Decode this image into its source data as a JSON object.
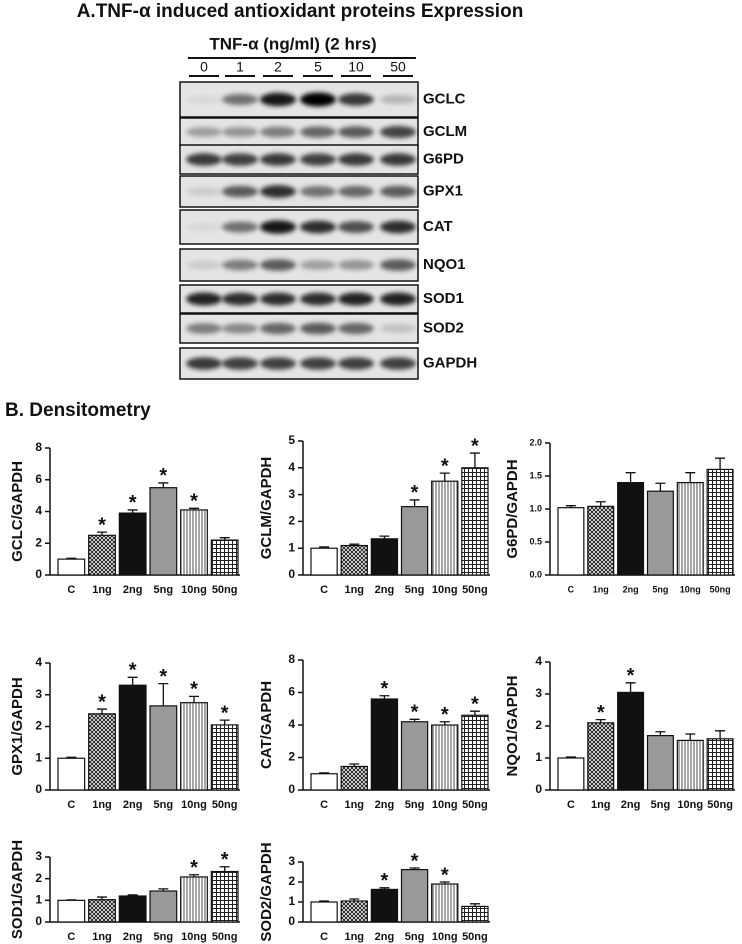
{
  "title": "A.TNF-α induced antioxidant proteins Expression",
  "blot": {
    "treatment": "TNF-α (ng/ml) (2 hrs)",
    "doses": [
      "0",
      "1",
      "2",
      "5",
      "10",
      "50"
    ],
    "proteins": [
      "GCLC",
      "GCLM",
      "G6PD",
      "GPX1",
      "CAT",
      "NQO1",
      "SOD1",
      "SOD2",
      "GAPDH"
    ]
  },
  "section_title": "B. Densitometry",
  "chart_data": [
    {
      "type": "bar",
      "ylabel": "GCLC/GAPDH",
      "categories": [
        "C",
        "1ng",
        "2ng",
        "5ng",
        "10ng",
        "50ng"
      ],
      "values": [
        1.0,
        2.5,
        3.9,
        5.5,
        4.1,
        2.2
      ],
      "errors": [
        0.05,
        0.2,
        0.2,
        0.3,
        0.1,
        0.15
      ],
      "stars": [
        null,
        "*",
        "*",
        "*",
        "*",
        null
      ],
      "ylim": [
        0,
        8
      ],
      "yticks": [
        0,
        2,
        4,
        6,
        8
      ]
    },
    {
      "type": "bar",
      "ylabel": "GCLM/GAPDH",
      "categories": [
        "C",
        "1ng",
        "2ng",
        "5ng",
        "10ng",
        "50ng"
      ],
      "values": [
        1.0,
        1.1,
        1.35,
        2.55,
        3.5,
        4.0
      ],
      "errors": [
        0.05,
        0.05,
        0.1,
        0.25,
        0.3,
        0.55
      ],
      "stars": [
        null,
        null,
        null,
        "*",
        "*",
        "*"
      ],
      "ylim": [
        0,
        5
      ],
      "yticks": [
        0,
        1,
        2,
        3,
        4,
        5
      ]
    },
    {
      "type": "bar",
      "ylabel": "G6PD/GAPDH",
      "categories": [
        "C",
        "1ng",
        "2ng",
        "5ng",
        "10ng",
        "50ng"
      ],
      "values": [
        1.02,
        1.04,
        1.4,
        1.27,
        1.4,
        1.6
      ],
      "errors": [
        0.03,
        0.07,
        0.15,
        0.12,
        0.15,
        0.17
      ],
      "stars": [
        null,
        null,
        null,
        null,
        null,
        null
      ],
      "ylim": [
        0,
        2
      ],
      "yticks": [
        {
          "value": 0,
          "label": "0.0"
        },
        {
          "value": 0.5,
          "label": "0.5"
        },
        {
          "value": 1,
          "label": "1.0"
        },
        {
          "value": 1.5,
          "label": "1.5"
        },
        {
          "value": 2,
          "label": "2.0"
        }
      ]
    },
    {
      "type": "bar",
      "ylabel": "GPX1/GAPDH",
      "categories": [
        "C",
        "1ng",
        "2ng",
        "5ng",
        "10ng",
        "50ng"
      ],
      "values": [
        1.0,
        2.4,
        3.3,
        2.65,
        2.75,
        2.05
      ],
      "errors": [
        0.03,
        0.15,
        0.25,
        0.7,
        0.2,
        0.15
      ],
      "stars": [
        null,
        "*",
        "*",
        "*",
        "*",
        "*"
      ],
      "ylim": [
        0,
        4
      ],
      "yticks": [
        0,
        1,
        2,
        3,
        4
      ]
    },
    {
      "type": "bar",
      "ylabel": "CAT/GAPDH",
      "categories": [
        "C",
        "1ng",
        "2ng",
        "5ng",
        "10ng",
        "50ng"
      ],
      "values": [
        1.0,
        1.45,
        5.6,
        4.2,
        4.0,
        4.6
      ],
      "errors": [
        0.05,
        0.15,
        0.2,
        0.15,
        0.2,
        0.25
      ],
      "stars": [
        null,
        null,
        "*",
        "*",
        "*",
        "*"
      ],
      "ylim": [
        0,
        8
      ],
      "yticks": [
        0,
        2,
        4,
        6,
        8
      ]
    },
    {
      "type": "bar",
      "ylabel": "NQO1/GAPDH",
      "categories": [
        "C",
        "1ng",
        "2ng",
        "5ng",
        "10ng",
        "50ng"
      ],
      "values": [
        1.0,
        2.1,
        3.05,
        1.7,
        1.55,
        1.6
      ],
      "errors": [
        0.03,
        0.1,
        0.3,
        0.12,
        0.2,
        0.25
      ],
      "stars": [
        null,
        "*",
        "*",
        null,
        null,
        null
      ],
      "ylim": [
        0,
        4
      ],
      "yticks": [
        0,
        1,
        2,
        3,
        4
      ]
    },
    {
      "type": "bar",
      "ylabel": "SOD1/GAPDH",
      "categories": [
        "C",
        "1ng",
        "2ng",
        "5ng",
        "10ng",
        "50ng"
      ],
      "values": [
        1.0,
        1.03,
        1.2,
        1.43,
        2.08,
        2.33
      ],
      "errors": [
        0.02,
        0.12,
        0.05,
        0.1,
        0.1,
        0.22
      ],
      "stars": [
        null,
        null,
        null,
        null,
        "*",
        "*"
      ],
      "ylim": [
        0,
        3
      ],
      "yticks": [
        0,
        1,
        2,
        3
      ]
    },
    {
      "type": "bar",
      "ylabel": "SOD2/GAPDH",
      "categories": [
        "C",
        "1ng",
        "2ng",
        "5ng",
        "10ng",
        "50ng"
      ],
      "values": [
        1.0,
        1.05,
        1.63,
        2.62,
        1.9,
        0.78
      ],
      "errors": [
        0.05,
        0.1,
        0.08,
        0.08,
        0.1,
        0.13
      ],
      "stars": [
        null,
        null,
        "*",
        "*",
        "*",
        null
      ],
      "ylim": [
        0,
        3
      ],
      "yticks": [
        0,
        1,
        2,
        3
      ]
    }
  ]
}
